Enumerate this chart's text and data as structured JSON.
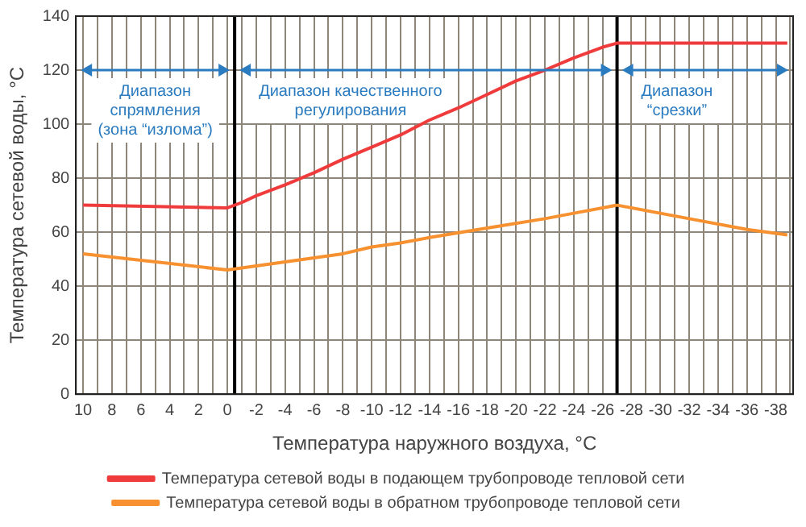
{
  "chart_data": {
    "type": "line",
    "xlabel": "Температура наружного воздуха, °C",
    "ylabel": "Температура сетевой воды, °C",
    "series": [
      {
        "name": "Температура сетевой воды в подающем трубопроводе тепловой сети",
        "color": "#ef3b3b",
        "x": [
          10,
          0,
          -1,
          -2,
          -4,
          -6,
          -8,
          -10,
          -12,
          -14,
          -16,
          -18,
          -20,
          -22,
          -24,
          -26,
          -27,
          -38.8
        ],
        "values": [
          70,
          69,
          71,
          73.5,
          77.5,
          82,
          87,
          91.5,
          96,
          101.5,
          106,
          111,
          116,
          120,
          124.5,
          128.5,
          130,
          130
        ]
      },
      {
        "name": "Температура сетевой воды в обратном трубопроводе тепловой сети",
        "color": "#f7902f",
        "x": [
          10,
          0,
          -4,
          -8,
          -10,
          -12,
          -14,
          -18,
          -22,
          -24,
          -27,
          -32,
          -36,
          -38.8
        ],
        "values": [
          52,
          46,
          49,
          52,
          54.5,
          56,
          58,
          61.5,
          65,
          67,
          70,
          65,
          61,
          59
        ]
      }
    ],
    "xlim": [
      10.5,
      -39.2
    ],
    "ylim": [
      0,
      140
    ],
    "xticks": [
      10,
      {
        "value": 9,
        "label": null
      },
      8,
      {
        "value": 7,
        "label": null
      },
      6,
      {
        "value": 5,
        "label": null
      },
      4,
      {
        "value": 3,
        "label": null
      },
      2,
      {
        "value": 1,
        "label": null
      },
      0,
      {
        "value": -1,
        "label": null
      },
      -2,
      {
        "value": -3,
        "label": null
      },
      -4,
      {
        "value": -5,
        "label": null
      },
      -6,
      {
        "value": -7,
        "label": null
      },
      -8,
      {
        "value": -9,
        "label": null
      },
      -10,
      {
        "value": -11,
        "label": null
      },
      -12,
      {
        "value": -13,
        "label": null
      },
      -14,
      {
        "value": -15,
        "label": null
      },
      -16,
      {
        "value": -17,
        "label": null
      },
      -18,
      {
        "value": -19,
        "label": null
      },
      -20,
      {
        "value": -21,
        "label": null
      },
      -22,
      {
        "value": -23,
        "label": null
      },
      -24,
      {
        "value": -25,
        "label": null
      },
      -26,
      {
        "value": -27,
        "label": null
      },
      -28,
      {
        "value": -29,
        "label": null
      },
      -30,
      {
        "value": -31,
        "label": null
      },
      -32,
      {
        "value": -33,
        "label": null
      },
      -34,
      {
        "value": -35,
        "label": null
      },
      -36,
      {
        "value": -37,
        "label": null
      },
      -38,
      {
        "value": -39,
        "label": null
      }
    ],
    "yticks": [
      0,
      20,
      40,
      60,
      80,
      100,
      120,
      140
    ],
    "ref_lines": [
      {
        "axis": "x",
        "value": -0.5,
        "color": "#000000"
      },
      {
        "axis": "x",
        "value": -27,
        "color": "#000000"
      }
    ],
    "annotations": [
      "Диапазон\nспрямления\n(зона “излома”)",
      "Диапазон качественного\nрегулирования",
      "Диапазон\n“срезки”"
    ],
    "grid": true,
    "legend": "bottom",
    "marker": "none",
    "line_style": "solid"
  }
}
